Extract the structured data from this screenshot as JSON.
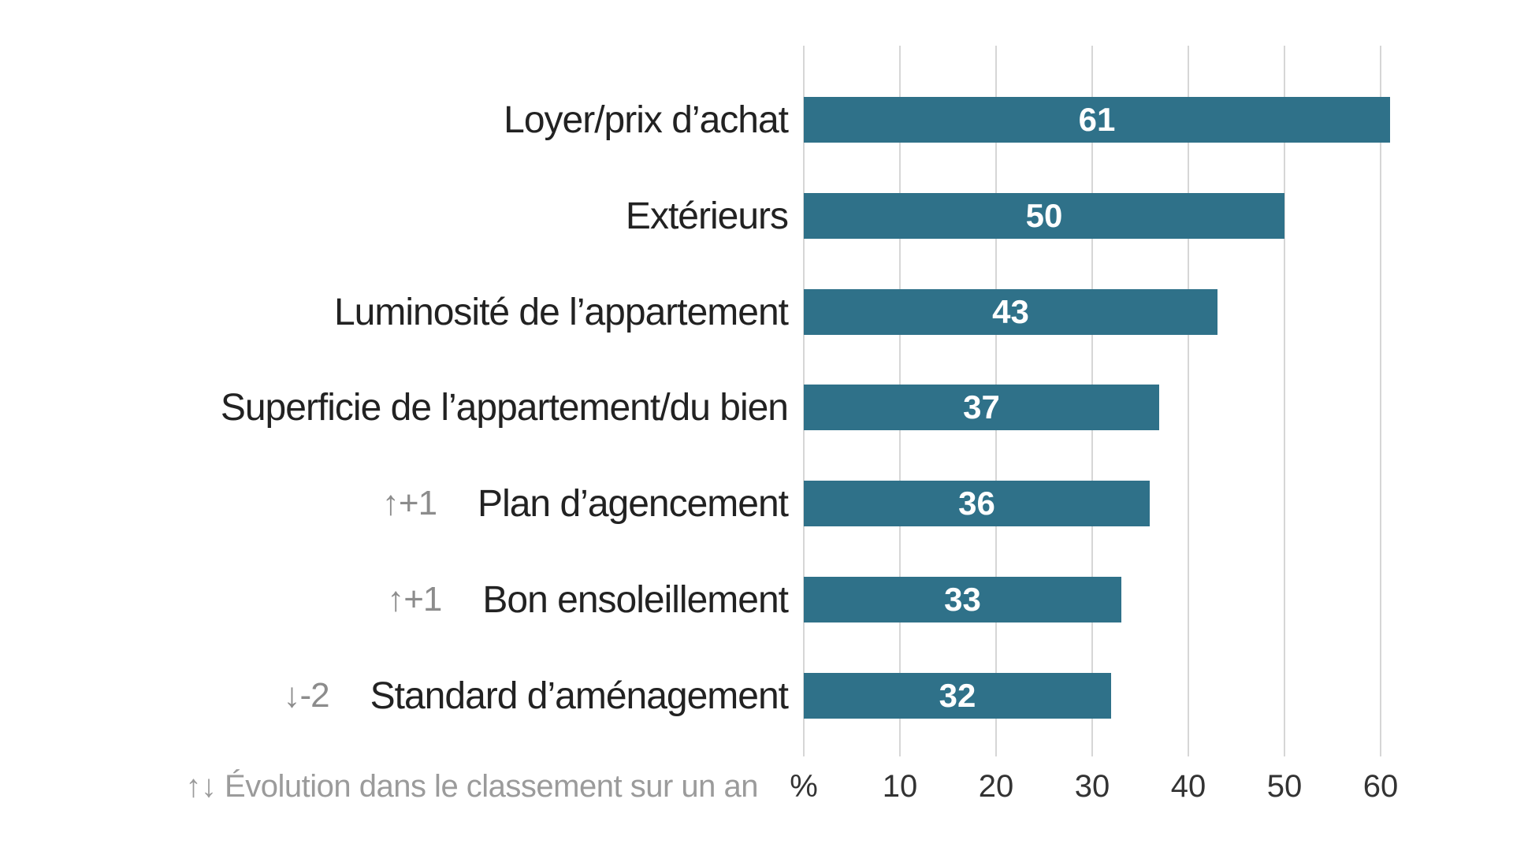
{
  "chart_data": {
    "type": "bar",
    "orientation": "horizontal",
    "unit_label": "%",
    "categories": [
      "Loyer/prix d’achat",
      "Extérieurs",
      "Luminosité de l’appartement",
      "Superficie de l’appartement/du bien",
      "Plan d’agencement",
      "Bon ensoleillement",
      "Standard d’aménagement"
    ],
    "values": [
      61,
      50,
      43,
      37,
      36,
      33,
      32
    ],
    "rank_changes": [
      null,
      null,
      null,
      null,
      "↑+1",
      "↑+1",
      "↓-2"
    ],
    "x_ticks": [
      "%",
      "10",
      "20",
      "30",
      "40",
      "50",
      "60"
    ],
    "x_gridline_values": [
      0,
      10,
      20,
      30,
      40,
      50,
      60
    ],
    "xlim": [
      0,
      64
    ],
    "grid": true,
    "value_labels_position": "center-inside",
    "footnote": "↑↓ Évolution dans le classement sur un an",
    "colors": {
      "bar": "#2f7189",
      "value_label": "#ffffff",
      "category_label": "#222222",
      "rank_change": "#8c8c8c",
      "axis_tick": "#333333",
      "footnote": "#9b9b9b",
      "gridline": "#d6d6d6",
      "background": "#ffffff"
    }
  },
  "rows": [
    {
      "label": "Loyer/prix d’achat",
      "value": "61",
      "change": null
    },
    {
      "label": "Extérieurs",
      "value": "50",
      "change": null
    },
    {
      "label": "Luminosité de l’appartement",
      "value": "43",
      "change": null
    },
    {
      "label": "Superficie de l’appartement/du bien",
      "value": "37",
      "change": null
    },
    {
      "label": "Plan d’agencement",
      "value": "36",
      "change": "↑+1"
    },
    {
      "label": "Bon ensoleillement",
      "value": "33",
      "change": "↑+1"
    },
    {
      "label": "Standard d’aménagement",
      "value": "32",
      "change": "↓-2"
    }
  ]
}
